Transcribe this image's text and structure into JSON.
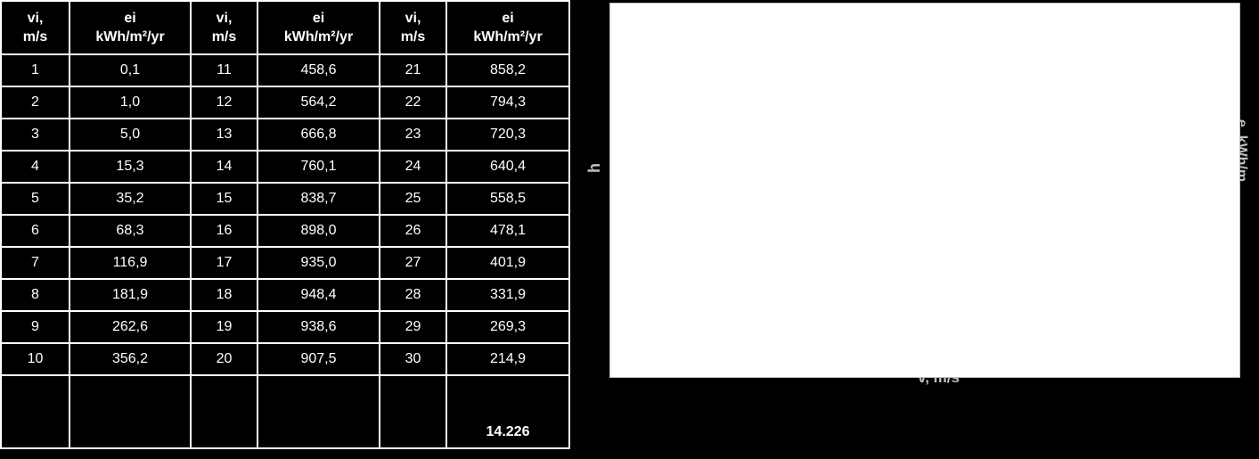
{
  "table": {
    "headers": [
      [
        "vi,",
        "m/s"
      ],
      [
        "ei",
        "kWh/m²/yr"
      ],
      [
        "vi,",
        "m/s"
      ],
      [
        "ei",
        "kWh/m²/yr"
      ],
      [
        "vi,",
        "m/s"
      ],
      [
        "ei",
        "kWh/m²/yr"
      ]
    ],
    "rows": [
      [
        "1",
        "0,1",
        "11",
        "458,6",
        "21",
        "858,2"
      ],
      [
        "2",
        "1,0",
        "12",
        "564,2",
        "22",
        "794,3"
      ],
      [
        "3",
        "5,0",
        "13",
        "666,8",
        "23",
        "720,3"
      ],
      [
        "4",
        "15,3",
        "14",
        "760,1",
        "24",
        "640,4"
      ],
      [
        "5",
        "35,2",
        "15",
        "838,7",
        "25",
        "558,5"
      ],
      [
        "6",
        "68,3",
        "16",
        "898,0",
        "26",
        "478,1"
      ],
      [
        "7",
        "116,9",
        "17",
        "935,0",
        "27",
        "401,9"
      ],
      [
        "8",
        "181,9",
        "18",
        "948,4",
        "28",
        "331,9"
      ],
      [
        "9",
        "262,6",
        "19",
        "938,6",
        "29",
        "269,3"
      ],
      [
        "10",
        "356,2",
        "20",
        "907,5",
        "30",
        "214,9"
      ]
    ],
    "total": "14.226"
  },
  "chart_fragments": {
    "left": "h",
    "right": "e, kWh/m",
    "bottom": "v, m/s"
  }
}
